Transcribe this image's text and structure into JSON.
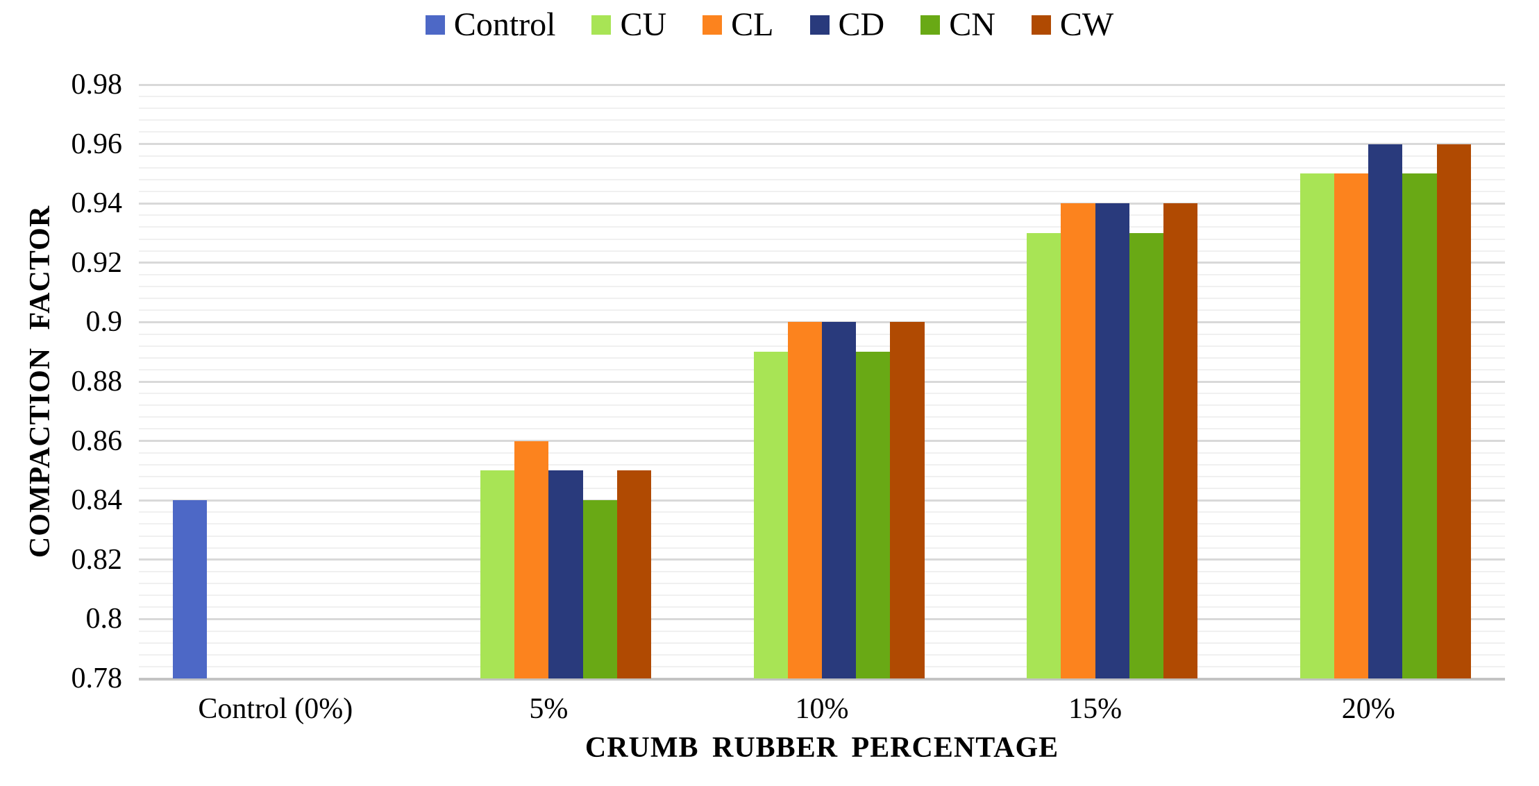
{
  "page": {
    "background": "#ffffff",
    "text_color": "#000000"
  },
  "chart_data": {
    "type": "bar",
    "title": "",
    "xlabel": "CRUMB RUBBER PERCENTAGE",
    "ylabel": "COMPACTION FACTOR",
    "categories": [
      "Control (0%)",
      "5%",
      "10%",
      "15%",
      "20%"
    ],
    "series": [
      {
        "name": "Control",
        "color": "#4D68C6",
        "values": [
          0.84,
          null,
          null,
          null,
          null
        ]
      },
      {
        "name": "CU",
        "color": "#A8E455",
        "values": [
          null,
          0.85,
          0.89,
          0.93,
          0.95
        ]
      },
      {
        "name": "CL",
        "color": "#FC831E",
        "values": [
          null,
          0.86,
          0.9,
          0.94,
          0.95
        ]
      },
      {
        "name": "CD",
        "color": "#293A7C",
        "values": [
          null,
          0.85,
          0.9,
          0.94,
          0.96
        ]
      },
      {
        "name": "CN",
        "color": "#69A915",
        "values": [
          null,
          0.84,
          0.89,
          0.93,
          0.95
        ]
      },
      {
        "name": "CW",
        "color": "#B04A02",
        "values": [
          null,
          0.85,
          0.9,
          0.94,
          0.96
        ]
      }
    ],
    "ylim": [
      0.78,
      0.98
    ],
    "y_major_step": 0.02,
    "y_minor_step": 0.004,
    "y_tick_labels": [
      "0.98",
      "0.96",
      "0.94",
      "0.92",
      "0.9",
      "0.88",
      "0.86",
      "0.84",
      "0.82",
      "0.8",
      "0.78"
    ],
    "legend_position": "top",
    "grid": {
      "major_color": "#D9D9D9",
      "minor_color": "#F0F0F0",
      "axis_line_color": "#C3C3C3"
    },
    "layout": {
      "bars_per_slot": 6,
      "slot_side_gap_in_bar_widths": 1
    }
  }
}
